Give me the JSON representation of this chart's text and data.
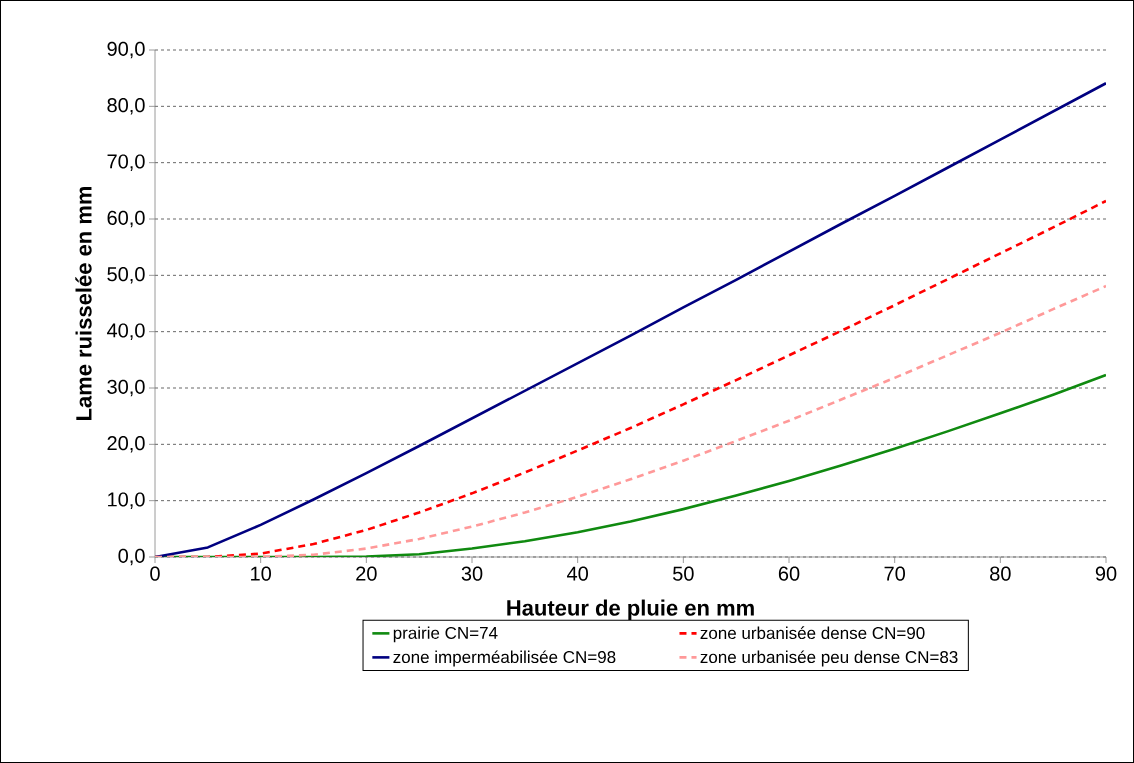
{
  "chart_data": {
    "type": "line",
    "xlabel": "Hauteur de pluie en mm",
    "ylabel": "Lame ruisselée en mm",
    "x": [
      0,
      5,
      10,
      15,
      20,
      25,
      30,
      35,
      40,
      45,
      50,
      55,
      60,
      65,
      70,
      75,
      80,
      85,
      90
    ],
    "series": [
      {
        "name": "prairie CN=74",
        "color": "#108a10",
        "line_style": "solid",
        "values": [
          0,
          0,
          0,
          0,
          0.1,
          0.5,
          1.5,
          2.8,
          4.4,
          6.3,
          8.5,
          10.9,
          13.5,
          16.3,
          19.2,
          22.3,
          25.5,
          28.8,
          32.3
        ]
      },
      {
        "name": "zone urbanisée dense CN=90",
        "color": "#ff0000",
        "line_style": "dashed",
        "values": [
          0,
          0,
          0.6,
          2.3,
          4.8,
          7.9,
          11.3,
          15.0,
          18.9,
          22.9,
          27.1,
          31.4,
          35.8,
          40.2,
          44.7,
          49.3,
          53.9,
          58.5,
          63.2
        ]
      },
      {
        "name": "zone imperméabilisée CN=98",
        "color": "#000080",
        "line_style": "solid",
        "values": [
          0,
          1.7,
          5.7,
          10.2,
          14.9,
          19.7,
          24.6,
          29.5,
          34.4,
          39.3,
          44.3,
          49.2,
          54.2,
          59.2,
          64.1,
          69.1,
          74.1,
          79.1,
          84.1
        ]
      },
      {
        "name": "zone urbanisée peu dense CN=83",
        "color": "#ff9999",
        "line_style": "dashed",
        "values": [
          0,
          0,
          0,
          0.4,
          1.5,
          3.2,
          5.4,
          7.9,
          10.7,
          13.8,
          17.1,
          20.6,
          24.2,
          28.0,
          31.8,
          35.8,
          39.8,
          44.0,
          48.1
        ]
      }
    ],
    "xlim": [
      0,
      90
    ],
    "ylim": [
      0,
      90
    ],
    "xticks": [
      0,
      10,
      20,
      30,
      40,
      50,
      60,
      70,
      80,
      90
    ],
    "yticks": [
      {
        "value": 0,
        "label": "0,0"
      },
      {
        "value": 10,
        "label": "10,0"
      },
      {
        "value": 20,
        "label": "20,0"
      },
      {
        "value": 30,
        "label": "30,0"
      },
      {
        "value": 40,
        "label": "40,0"
      },
      {
        "value": 50,
        "label": "50,0"
      },
      {
        "value": 60,
        "label": "60,0"
      },
      {
        "value": 70,
        "label": "70,0"
      },
      {
        "value": 80,
        "label": "80,0"
      },
      {
        "value": 90,
        "label": "90,0"
      }
    ],
    "grid": "y",
    "legend": "bottom",
    "marker": "none"
  }
}
